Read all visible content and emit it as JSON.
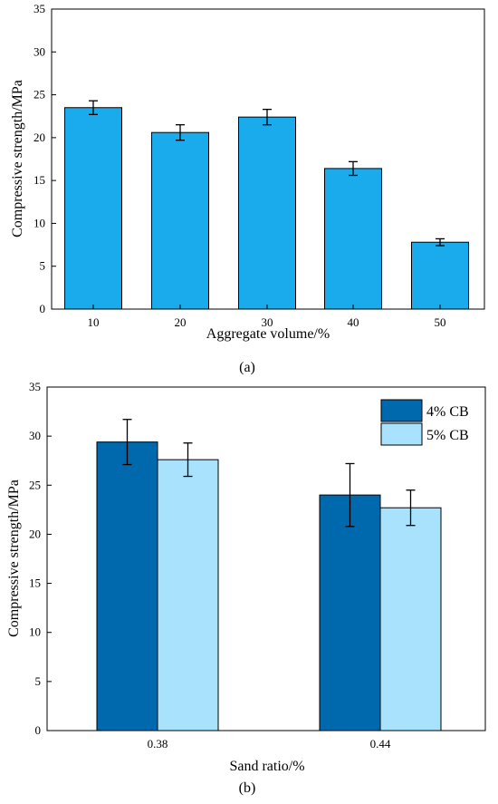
{
  "chart_data": [
    {
      "type": "bar",
      "panel_label": "(a)",
      "categories": [
        "10",
        "20",
        "30",
        "40",
        "50"
      ],
      "series": [
        {
          "values": [
            23.5,
            20.6,
            22.4,
            16.4,
            7.8
          ],
          "error": [
            0.8,
            0.9,
            0.9,
            0.8,
            0.4
          ],
          "color": "#1aabec"
        }
      ],
      "xlabel": "Aggregate volume/%",
      "ylabel": "Compressive strength/MPa",
      "ylim": [
        0,
        35
      ],
      "yticks": [
        0,
        5,
        10,
        15,
        20,
        25,
        30,
        35
      ],
      "grid": false,
      "legend": "none"
    },
    {
      "type": "bar",
      "panel_label": "(b)",
      "categories": [
        "0.38",
        "0.44"
      ],
      "series": [
        {
          "name": "4% CB",
          "values": [
            29.4,
            24.0
          ],
          "error": [
            2.3,
            3.2
          ],
          "color": "#0068ac"
        },
        {
          "name": "5% CB",
          "values": [
            27.6,
            22.7
          ],
          "error": [
            1.7,
            1.8
          ],
          "color": "#a9e2fc"
        }
      ],
      "xlabel": "Sand ratio/%",
      "ylabel": "Compressive strength/MPa",
      "ylim": [
        0,
        35
      ],
      "yticks": [
        0,
        5,
        10,
        15,
        20,
        25,
        30,
        35
      ],
      "grid": false,
      "legend": "top-right"
    }
  ]
}
